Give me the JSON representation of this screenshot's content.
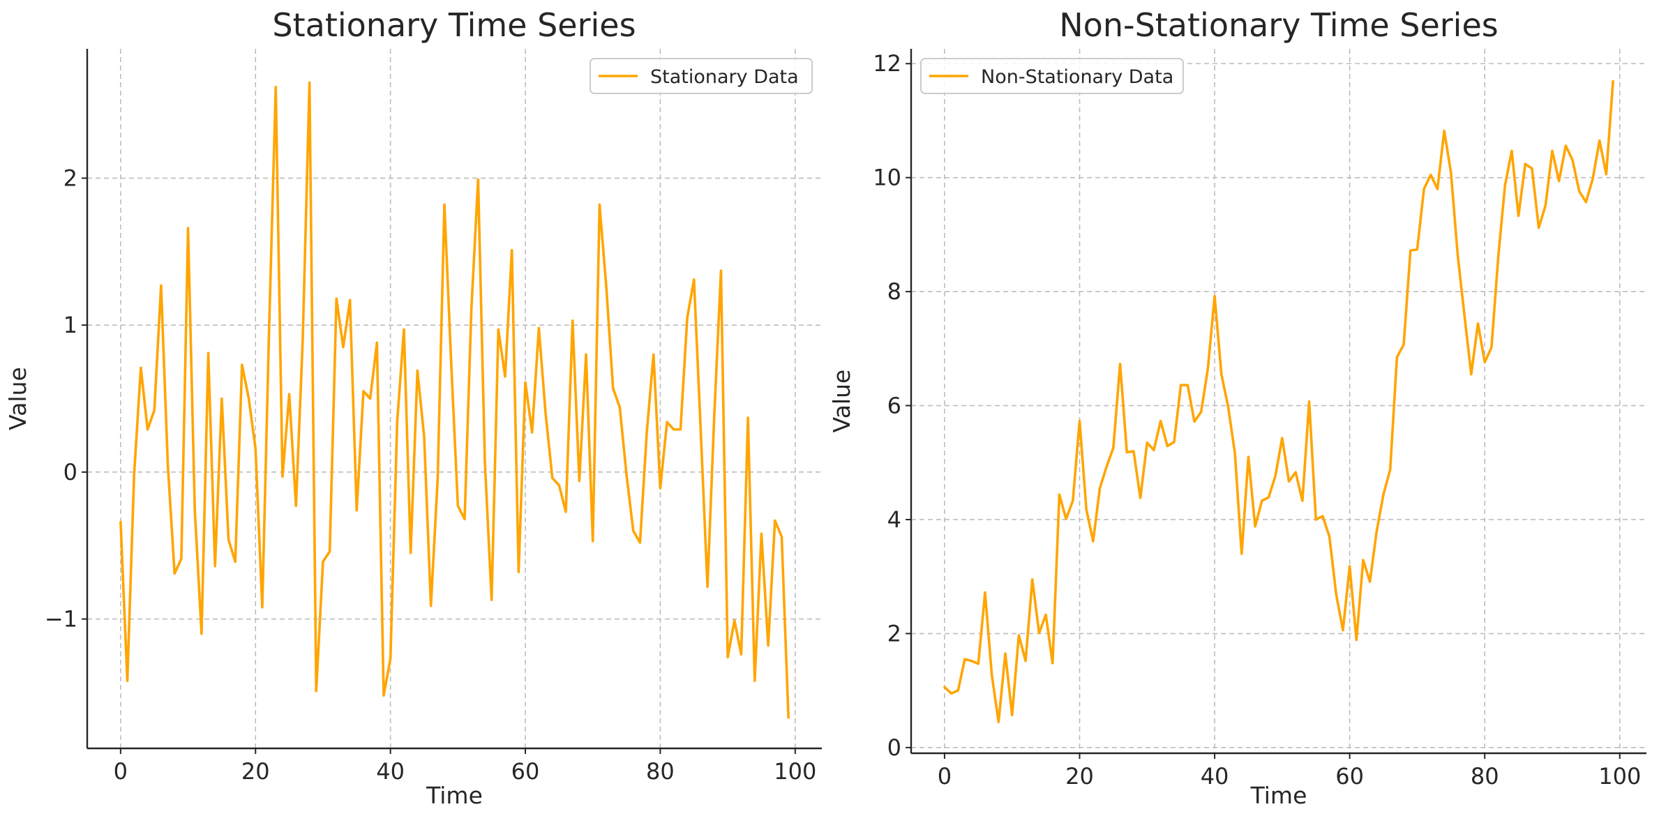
{
  "colors": {
    "series": "#FFA500",
    "text": "#262626",
    "grid": "#bdbdbd",
    "background": "#ffffff"
  },
  "chart_data": [
    {
      "type": "line",
      "title": "Stationary Time Series",
      "xlabel": "Time",
      "ylabel": "Value",
      "xlim": [
        -4.95,
        103.95
      ],
      "ylim": [
        -1.88,
        2.88
      ],
      "xticks": [
        0,
        20,
        40,
        60,
        80,
        100
      ],
      "xtick_labels": [
        "0",
        "20",
        "40",
        "60",
        "80",
        "100"
      ],
      "yticks": [
        -1,
        0,
        1,
        2
      ],
      "ytick_labels": [
        "−1",
        "0",
        "1",
        "2"
      ],
      "grid": true,
      "legend": "top-right",
      "series": [
        {
          "name": "Stationary Data",
          "x": [
            0,
            1,
            2,
            3,
            4,
            5,
            6,
            7,
            8,
            9,
            10,
            11,
            12,
            13,
            14,
            15,
            16,
            17,
            18,
            19,
            20,
            21,
            22,
            23,
            24,
            25,
            26,
            27,
            28,
            29,
            30,
            31,
            32,
            33,
            34,
            35,
            36,
            37,
            38,
            39,
            40,
            41,
            42,
            43,
            44,
            45,
            46,
            47,
            48,
            49,
            50,
            51,
            52,
            53,
            54,
            55,
            56,
            57,
            58,
            59,
            60,
            61,
            62,
            63,
            64,
            65,
            66,
            67,
            68,
            69,
            70,
            71,
            72,
            73,
            74,
            75,
            76,
            77,
            78,
            79,
            80,
            81,
            82,
            83,
            84,
            85,
            86,
            87,
            88,
            89,
            90,
            91,
            92,
            93,
            94,
            95,
            96,
            97,
            98,
            99
          ],
          "values": [
            -0.34,
            -1.42,
            -0.02,
            0.71,
            0.29,
            0.42,
            1.27,
            0.05,
            -0.69,
            -0.59,
            1.66,
            -0.26,
            -1.1,
            0.81,
            -0.64,
            0.5,
            -0.46,
            -0.61,
            0.73,
            0.5,
            0.16,
            -0.92,
            0.95,
            2.62,
            -0.03,
            0.53,
            -0.23,
            0.9,
            2.65,
            -1.49,
            -0.61,
            -0.54,
            1.18,
            0.85,
            1.17,
            -0.26,
            0.55,
            0.5,
            0.88,
            -1.52,
            -1.27,
            0.34,
            0.97,
            -0.55,
            0.69,
            0.24,
            -0.91,
            -0.05,
            1.82,
            0.75,
            -0.23,
            -0.32,
            1.11,
            1.99,
            0.07,
            -0.87,
            0.97,
            0.65,
            1.51,
            -0.68,
            0.61,
            0.27,
            0.98,
            0.4,
            -0.04,
            -0.09,
            -0.27,
            1.03,
            -0.06,
            0.8,
            -0.47,
            1.82,
            1.26,
            0.57,
            0.44,
            -0.02,
            -0.4,
            -0.48,
            0.27,
            0.8,
            -0.11,
            0.34,
            0.29,
            0.29,
            1.05,
            1.31,
            0.28,
            -0.78,
            0.38,
            1.37,
            -1.26,
            -1.01,
            -1.24,
            0.37,
            -1.42,
            -0.42,
            -1.18,
            -0.33,
            -0.44,
            -1.67
          ]
        }
      ]
    },
    {
      "type": "line",
      "title": "Non-Stationary Time Series",
      "xlabel": "Time",
      "ylabel": "Value",
      "xlim": [
        -4.95,
        103.95
      ],
      "ylim": [
        -0.1,
        12.26
      ],
      "xticks": [
        0,
        20,
        40,
        60,
        80,
        100
      ],
      "xtick_labels": [
        "0",
        "20",
        "40",
        "60",
        "80",
        "100"
      ],
      "yticks": [
        0,
        2,
        4,
        6,
        8,
        10,
        12
      ],
      "ytick_labels": [
        "0",
        "2",
        "4",
        "6",
        "8",
        "10",
        "12"
      ],
      "grid": true,
      "legend": "top-left",
      "series": [
        {
          "name": "Non-Stationary Data",
          "x": [
            0,
            1,
            2,
            3,
            4,
            5,
            6,
            7,
            8,
            9,
            10,
            11,
            12,
            13,
            14,
            15,
            16,
            17,
            18,
            19,
            20,
            21,
            22,
            23,
            24,
            25,
            26,
            27,
            28,
            29,
            30,
            31,
            32,
            33,
            34,
            35,
            36,
            37,
            38,
            39,
            40,
            41,
            42,
            43,
            44,
            45,
            46,
            47,
            48,
            49,
            50,
            51,
            52,
            53,
            54,
            55,
            56,
            57,
            58,
            59,
            60,
            61,
            62,
            63,
            64,
            65,
            66,
            67,
            68,
            69,
            70,
            71,
            72,
            73,
            74,
            75,
            76,
            77,
            78,
            79,
            80,
            81,
            82,
            83,
            84,
            85,
            86,
            87,
            88,
            89,
            90,
            91,
            92,
            93,
            94,
            95,
            96,
            97,
            98,
            99
          ],
          "values": [
            1.06,
            0.95,
            1.0,
            1.55,
            1.52,
            1.47,
            2.72,
            1.27,
            0.45,
            1.65,
            0.57,
            1.97,
            1.52,
            2.95,
            2.01,
            2.33,
            1.48,
            4.44,
            4.01,
            4.33,
            5.73,
            4.18,
            3.62,
            4.55,
            4.93,
            5.26,
            6.73,
            5.18,
            5.2,
            4.38,
            5.35,
            5.22,
            5.73,
            5.29,
            5.36,
            6.36,
            6.36,
            5.72,
            5.89,
            6.65,
            7.92,
            6.55,
            5.98,
            5.17,
            3.4,
            5.1,
            3.88,
            4.33,
            4.39,
            4.77,
            5.43,
            4.67,
            4.83,
            4.33,
            6.07,
            4.0,
            4.06,
            3.7,
            2.69,
            2.06,
            3.18,
            1.89,
            3.29,
            2.91,
            3.8,
            4.44,
            4.88,
            6.85,
            7.07,
            8.72,
            8.74,
            9.8,
            10.05,
            9.8,
            10.82,
            10.09,
            8.64,
            7.58,
            6.55,
            7.44,
            6.76,
            7.02,
            8.6,
            9.86,
            10.47,
            9.33,
            10.24,
            10.16,
            9.12,
            9.51,
            10.47,
            9.94,
            10.56,
            10.31,
            9.76,
            9.57,
            9.98,
            10.65,
            10.06,
            11.69
          ]
        }
      ]
    }
  ]
}
